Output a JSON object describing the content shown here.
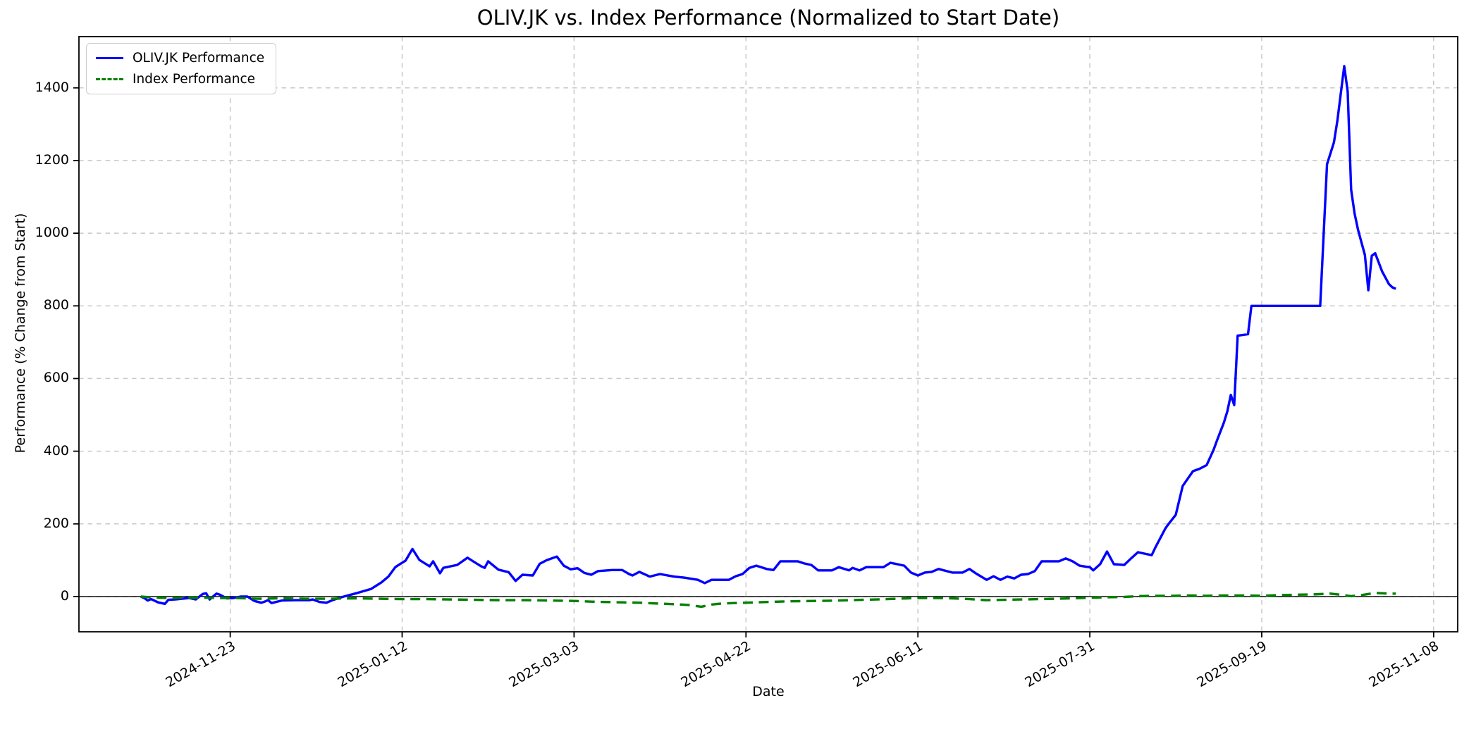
{
  "chart_data": {
    "type": "line",
    "title": "OLIV.JK vs. Index Performance (Normalized to Start Date)",
    "xlabel": "Date",
    "ylabel": "Performance (% Change from Start)",
    "x_ticks": [
      "2024-11-23",
      "2025-01-12",
      "2025-03-03",
      "2025-04-22",
      "2025-06-11",
      "2025-07-31",
      "2025-09-19",
      "2025-11-08"
    ],
    "y_ticks": [
      0,
      200,
      400,
      600,
      800,
      1000,
      1200,
      1400
    ],
    "xlim": [
      "2024-10-10",
      "2025-11-15"
    ],
    "ylim": [
      -97,
      1541
    ],
    "grid": true,
    "zero_line": 0,
    "legend_position": "upper-left",
    "colors": {
      "oliv": "#0000ff",
      "index": "#008000",
      "grid": "#c8c8c8",
      "spine": "#000000",
      "zero_line": "#000000",
      "background": "#ffffff"
    },
    "series": [
      {
        "name": "OLIV.JK Performance",
        "color": "#0000ff",
        "style": "solid",
        "points": [
          [
            "2024-10-28",
            0
          ],
          [
            "2024-10-29",
            -4
          ],
          [
            "2024-10-30",
            -11
          ],
          [
            "2024-10-31",
            -7
          ],
          [
            "2024-11-02",
            -16
          ],
          [
            "2024-11-04",
            -20
          ],
          [
            "2024-11-05",
            -9
          ],
          [
            "2024-11-07",
            -8
          ],
          [
            "2024-11-09",
            -6
          ],
          [
            "2024-11-11",
            -4
          ],
          [
            "2024-11-13",
            -8
          ],
          [
            "2024-11-15",
            7
          ],
          [
            "2024-11-16",
            9
          ],
          [
            "2024-11-17",
            -8
          ],
          [
            "2024-11-19",
            8
          ],
          [
            "2024-11-20",
            5
          ],
          [
            "2024-11-22",
            -5
          ],
          [
            "2024-11-24",
            -4
          ],
          [
            "2024-11-26",
            0
          ],
          [
            "2024-11-28",
            0
          ],
          [
            "2024-11-30",
            -12
          ],
          [
            "2024-12-02",
            -17
          ],
          [
            "2024-12-03",
            -14
          ],
          [
            "2024-12-04",
            -10
          ],
          [
            "2024-12-05",
            -18
          ],
          [
            "2024-12-08",
            -11
          ],
          [
            "2024-12-12",
            -10
          ],
          [
            "2024-12-16",
            -10
          ],
          [
            "2024-12-17",
            -8
          ],
          [
            "2024-12-19",
            -15
          ],
          [
            "2024-12-21",
            -17
          ],
          [
            "2024-12-23",
            -9
          ],
          [
            "2024-12-26",
            0
          ],
          [
            "2024-12-30",
            10
          ],
          [
            "2025-01-03",
            21
          ],
          [
            "2025-01-06",
            39
          ],
          [
            "2025-01-08",
            55
          ],
          [
            "2025-01-10",
            81
          ],
          [
            "2025-01-11",
            87
          ],
          [
            "2025-01-13",
            99
          ],
          [
            "2025-01-15",
            131
          ],
          [
            "2025-01-17",
            101
          ],
          [
            "2025-01-18",
            95
          ],
          [
            "2025-01-20",
            83
          ],
          [
            "2025-01-21",
            97
          ],
          [
            "2025-01-23",
            64
          ],
          [
            "2025-01-24",
            79
          ],
          [
            "2025-01-26",
            83
          ],
          [
            "2025-01-28",
            87
          ],
          [
            "2025-01-31",
            107
          ],
          [
            "2025-02-02",
            95
          ],
          [
            "2025-02-04",
            83
          ],
          [
            "2025-02-05",
            79
          ],
          [
            "2025-02-06",
            97
          ],
          [
            "2025-02-09",
            74
          ],
          [
            "2025-02-12",
            67
          ],
          [
            "2025-02-14",
            43
          ],
          [
            "2025-02-16",
            60
          ],
          [
            "2025-02-19",
            58
          ],
          [
            "2025-02-21",
            90
          ],
          [
            "2025-02-23",
            100
          ],
          [
            "2025-02-26",
            110
          ],
          [
            "2025-02-28",
            85
          ],
          [
            "2025-03-02",
            75
          ],
          [
            "2025-03-04",
            78
          ],
          [
            "2025-03-06",
            65
          ],
          [
            "2025-03-08",
            60
          ],
          [
            "2025-03-10",
            70
          ],
          [
            "2025-03-14",
            73
          ],
          [
            "2025-03-17",
            73
          ],
          [
            "2025-03-19",
            62
          ],
          [
            "2025-03-20",
            58
          ],
          [
            "2025-03-22",
            68
          ],
          [
            "2025-03-25",
            55
          ],
          [
            "2025-03-28",
            62
          ],
          [
            "2025-04-01",
            55
          ],
          [
            "2025-04-04",
            52
          ],
          [
            "2025-04-08",
            46
          ],
          [
            "2025-04-10",
            37
          ],
          [
            "2025-04-12",
            46
          ],
          [
            "2025-04-17",
            46
          ],
          [
            "2025-04-19",
            56
          ],
          [
            "2025-04-21",
            62
          ],
          [
            "2025-04-23",
            79
          ],
          [
            "2025-04-25",
            85
          ],
          [
            "2025-04-28",
            76
          ],
          [
            "2025-04-30",
            73
          ],
          [
            "2025-05-02",
            97
          ],
          [
            "2025-05-07",
            97
          ],
          [
            "2025-05-09",
            91
          ],
          [
            "2025-05-11",
            87
          ],
          [
            "2025-05-13",
            72
          ],
          [
            "2025-05-17",
            72
          ],
          [
            "2025-05-19",
            81
          ],
          [
            "2025-05-22",
            72
          ],
          [
            "2025-05-23",
            79
          ],
          [
            "2025-05-25",
            72
          ],
          [
            "2025-05-27",
            81
          ],
          [
            "2025-06-01",
            81
          ],
          [
            "2025-06-03",
            93
          ],
          [
            "2025-06-05",
            89
          ],
          [
            "2025-06-07",
            85
          ],
          [
            "2025-06-09",
            66
          ],
          [
            "2025-06-11",
            58
          ],
          [
            "2025-06-13",
            66
          ],
          [
            "2025-06-15",
            68
          ],
          [
            "2025-06-17",
            76
          ],
          [
            "2025-06-21",
            66
          ],
          [
            "2025-06-24",
            66
          ],
          [
            "2025-06-26",
            76
          ],
          [
            "2025-06-28",
            63
          ],
          [
            "2025-07-01",
            46
          ],
          [
            "2025-07-03",
            56
          ],
          [
            "2025-07-05",
            46
          ],
          [
            "2025-07-07",
            55
          ],
          [
            "2025-07-09",
            50
          ],
          [
            "2025-07-11",
            60
          ],
          [
            "2025-07-13",
            62
          ],
          [
            "2025-07-15",
            70
          ],
          [
            "2025-07-17",
            97
          ],
          [
            "2025-07-20",
            97
          ],
          [
            "2025-07-22",
            97
          ],
          [
            "2025-07-24",
            105
          ],
          [
            "2025-07-26",
            97
          ],
          [
            "2025-07-28",
            85
          ],
          [
            "2025-07-30",
            82
          ],
          [
            "2025-07-31",
            81
          ],
          [
            "2025-08-01",
            72
          ],
          [
            "2025-08-03",
            89
          ],
          [
            "2025-08-05",
            124
          ],
          [
            "2025-08-07",
            89
          ],
          [
            "2025-08-10",
            87
          ],
          [
            "2025-08-12",
            105
          ],
          [
            "2025-08-14",
            122
          ],
          [
            "2025-08-16",
            118
          ],
          [
            "2025-08-18",
            114
          ],
          [
            "2025-08-19",
            134
          ],
          [
            "2025-08-21",
            170
          ],
          [
            "2025-08-22",
            188
          ],
          [
            "2025-08-23",
            201
          ],
          [
            "2025-08-25",
            225
          ],
          [
            "2025-08-27",
            304
          ],
          [
            "2025-08-28",
            318
          ],
          [
            "2025-08-30",
            345
          ],
          [
            "2025-09-01",
            352
          ],
          [
            "2025-09-03",
            362
          ],
          [
            "2025-09-05",
            404
          ],
          [
            "2025-09-06",
            430
          ],
          [
            "2025-09-08",
            479
          ],
          [
            "2025-09-09",
            510
          ],
          [
            "2025-09-10",
            555
          ],
          [
            "2025-09-11",
            527
          ],
          [
            "2025-09-12",
            718
          ],
          [
            "2025-09-15",
            722
          ],
          [
            "2025-09-16",
            800
          ],
          [
            "2025-09-20",
            800
          ],
          [
            "2025-09-25",
            800
          ],
          [
            "2025-09-30",
            800
          ],
          [
            "2025-10-06",
            800
          ],
          [
            "2025-10-08",
            1190
          ],
          [
            "2025-10-10",
            1250
          ],
          [
            "2025-10-11",
            1310
          ],
          [
            "2025-10-13",
            1460
          ],
          [
            "2025-10-14",
            1390
          ],
          [
            "2025-10-15",
            1120
          ],
          [
            "2025-10-16",
            1054
          ],
          [
            "2025-10-17",
            1010
          ],
          [
            "2025-10-18",
            975
          ],
          [
            "2025-10-19",
            940
          ],
          [
            "2025-10-20",
            843
          ],
          [
            "2025-10-21",
            938
          ],
          [
            "2025-10-22",
            945
          ],
          [
            "2025-10-23",
            920
          ],
          [
            "2025-10-24",
            895
          ],
          [
            "2025-10-26",
            860
          ],
          [
            "2025-10-27",
            851
          ],
          [
            "2025-10-28",
            847
          ]
        ]
      },
      {
        "name": "Index Performance",
        "color": "#008000",
        "style": "dashed",
        "points": [
          [
            "2024-10-28",
            0
          ],
          [
            "2024-11-01",
            -3
          ],
          [
            "2024-11-05",
            -4
          ],
          [
            "2024-11-10",
            -3
          ],
          [
            "2024-11-15",
            -3
          ],
          [
            "2024-11-20",
            -4
          ],
          [
            "2024-11-25",
            -4
          ],
          [
            "2024-12-01",
            -6
          ],
          [
            "2024-12-08",
            -5
          ],
          [
            "2024-12-15",
            -6
          ],
          [
            "2024-12-22",
            -6
          ],
          [
            "2024-12-29",
            -5
          ],
          [
            "2025-01-05",
            -6
          ],
          [
            "2025-01-12",
            -7
          ],
          [
            "2025-01-19",
            -7
          ],
          [
            "2025-01-26",
            -8
          ],
          [
            "2025-02-02",
            -9
          ],
          [
            "2025-02-10",
            -10
          ],
          [
            "2025-02-17",
            -10
          ],
          [
            "2025-02-24",
            -11
          ],
          [
            "2025-03-03",
            -12
          ],
          [
            "2025-03-08",
            -14
          ],
          [
            "2025-03-12",
            -15
          ],
          [
            "2025-03-17",
            -16
          ],
          [
            "2025-03-22",
            -17
          ],
          [
            "2025-03-27",
            -19
          ],
          [
            "2025-04-01",
            -21
          ],
          [
            "2025-04-05",
            -23
          ],
          [
            "2025-04-09",
            -28
          ],
          [
            "2025-04-12",
            -22
          ],
          [
            "2025-04-15",
            -19
          ],
          [
            "2025-04-22",
            -17
          ],
          [
            "2025-04-28",
            -15
          ],
          [
            "2025-05-05",
            -13
          ],
          [
            "2025-05-12",
            -12
          ],
          [
            "2025-05-19",
            -11
          ],
          [
            "2025-05-26",
            -9
          ],
          [
            "2025-06-02",
            -7
          ],
          [
            "2025-06-08",
            -5
          ],
          [
            "2025-06-11",
            -4
          ],
          [
            "2025-06-16",
            -4
          ],
          [
            "2025-06-21",
            -5
          ],
          [
            "2025-06-26",
            -7
          ],
          [
            "2025-07-01",
            -10
          ],
          [
            "2025-07-06",
            -9
          ],
          [
            "2025-07-11",
            -8
          ],
          [
            "2025-07-16",
            -7
          ],
          [
            "2025-07-21",
            -6
          ],
          [
            "2025-07-26",
            -5
          ],
          [
            "2025-07-31",
            -3
          ],
          [
            "2025-08-05",
            -2
          ],
          [
            "2025-08-10",
            -1
          ],
          [
            "2025-08-14",
            1
          ],
          [
            "2025-08-19",
            2
          ],
          [
            "2025-08-24",
            2
          ],
          [
            "2025-08-29",
            3
          ],
          [
            "2025-09-03",
            2
          ],
          [
            "2025-09-08",
            3
          ],
          [
            "2025-09-13",
            3
          ],
          [
            "2025-09-19",
            2
          ],
          [
            "2025-09-24",
            4
          ],
          [
            "2025-09-29",
            5
          ],
          [
            "2025-10-04",
            6
          ],
          [
            "2025-10-09",
            8
          ],
          [
            "2025-10-12",
            5
          ],
          [
            "2025-10-15",
            1
          ],
          [
            "2025-10-18",
            4
          ],
          [
            "2025-10-20",
            7
          ],
          [
            "2025-10-22",
            10
          ],
          [
            "2025-10-24",
            9
          ],
          [
            "2025-10-26",
            8
          ],
          [
            "2025-10-28",
            8
          ]
        ]
      }
    ]
  }
}
